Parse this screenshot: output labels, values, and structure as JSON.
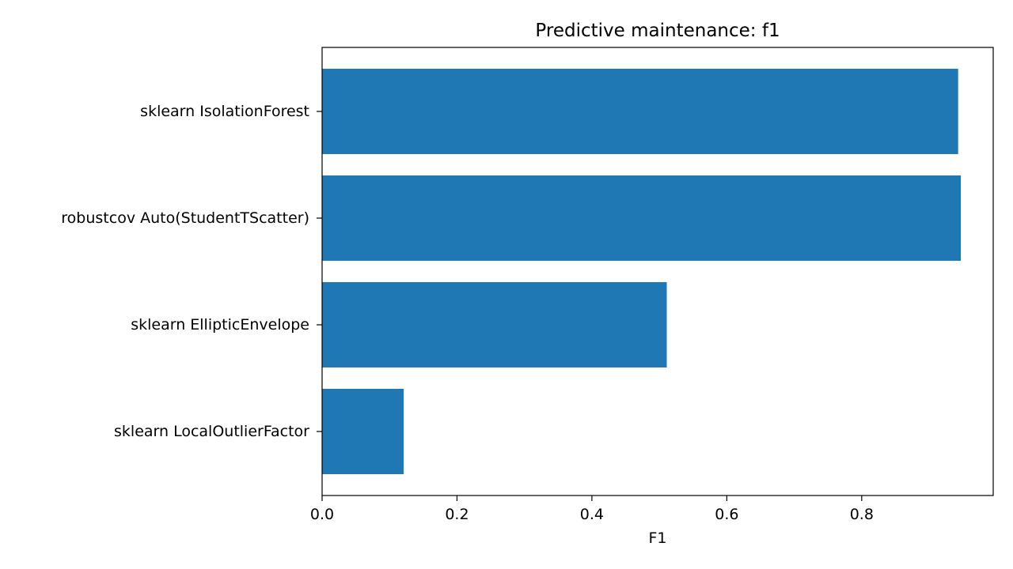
{
  "chart_data": {
    "type": "bar",
    "orientation": "horizontal",
    "title": "Predictive maintenance: f1",
    "xlabel": "F1",
    "ylabel": "",
    "categories": [
      "sklearn IsolationForest",
      "robustcov Auto(StudentTScatter)",
      "sklearn EllipticEnvelope",
      "sklearn LocalOutlierFactor"
    ],
    "values": [
      0.943,
      0.947,
      0.511,
      0.121
    ],
    "xlim": [
      0,
      0.995
    ],
    "xticks": [
      0.0,
      0.2,
      0.4,
      0.6,
      0.8
    ],
    "xtick_labels": [
      "0.0",
      "0.2",
      "0.4",
      "0.6",
      "0.8"
    ],
    "grid": false,
    "legend": "none",
    "bar_color": "#1f77b4"
  }
}
